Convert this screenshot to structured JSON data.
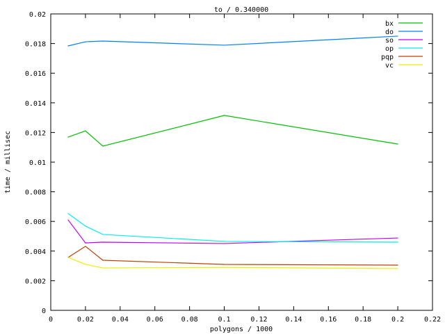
{
  "chart_data": {
    "type": "line",
    "title": "to / 0.340000",
    "xlabel": "polygons / 1000",
    "ylabel": "time / millisec",
    "xlim": [
      0,
      0.22
    ],
    "ylim": [
      0,
      0.02
    ],
    "xticks": [
      "0",
      "0.02",
      "0.04",
      "0.06",
      "0.08",
      "0.1",
      "0.12",
      "0.14",
      "0.16",
      "0.18",
      "0.2",
      "0.22"
    ],
    "yticks": [
      "0",
      "0.002",
      "0.004",
      "0.006",
      "0.008",
      "0.01",
      "0.012",
      "0.014",
      "0.016",
      "0.018",
      "0.02"
    ],
    "grid": false,
    "legend_position": "top-right",
    "x": [
      0.01,
      0.02,
      0.03,
      0.1,
      0.2
    ],
    "series": [
      {
        "name": "bx",
        "color": "#00c000",
        "values": [
          0.01169,
          0.01211,
          0.01108,
          0.01315,
          0.01122
        ]
      },
      {
        "name": "do",
        "color": "#0080ff",
        "values": [
          0.01784,
          0.01812,
          0.01817,
          0.01789,
          0.0185
        ]
      },
      {
        "name": "so",
        "color": "#c000ff",
        "values": [
          0.0061,
          0.00455,
          0.0046,
          0.00451,
          0.00488
        ]
      },
      {
        "name": "op",
        "color": "#00eeee",
        "values": [
          0.00653,
          0.00568,
          0.00512,
          0.00465,
          0.0046
        ]
      },
      {
        "name": "pqp",
        "color": "#c04000",
        "values": [
          0.00357,
          0.00432,
          0.00338,
          0.0031,
          0.00305
        ]
      },
      {
        "name": "vc",
        "color": "#eeee00",
        "values": [
          0.00357,
          0.0031,
          0.00286,
          0.0029,
          0.00282
        ]
      }
    ]
  }
}
